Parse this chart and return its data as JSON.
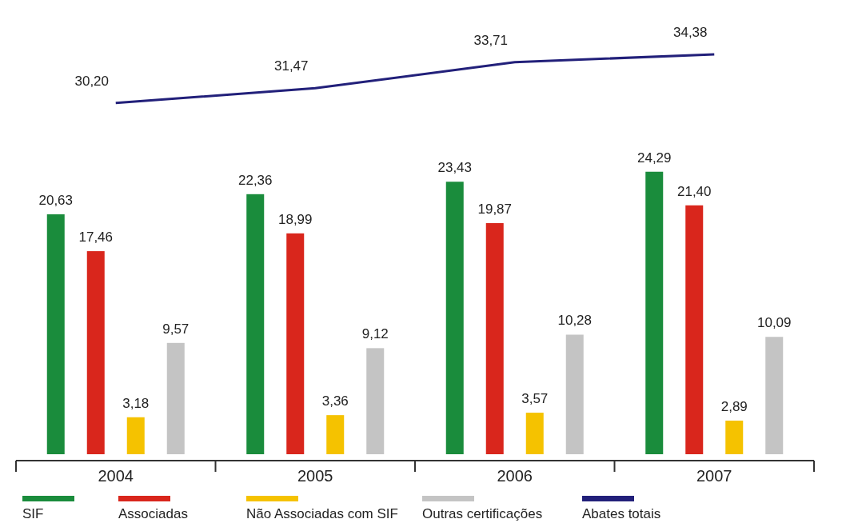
{
  "chart_data": {
    "type": "bar",
    "categories": [
      "2004",
      "2005",
      "2006",
      "2007"
    ],
    "series": [
      {
        "name": "SIF",
        "color": "#1a8c3c",
        "values": [
          20.63,
          22.36,
          23.43,
          24.29
        ],
        "value_labels": [
          "20,63",
          "22,36",
          "23,43",
          "24,29"
        ]
      },
      {
        "name": "Associadas",
        "color": "#d9261c",
        "values": [
          17.46,
          18.99,
          19.87,
          21.4
        ],
        "value_labels": [
          "17,46",
          "18,99",
          "19,87",
          "21,40"
        ]
      },
      {
        "name": "Não Associadas com SIF",
        "color": "#f5c200",
        "values": [
          3.18,
          3.36,
          3.57,
          2.89
        ],
        "value_labels": [
          "3,18",
          "3,36",
          "3,57",
          "2,89"
        ]
      },
      {
        "name": "Outras certificações",
        "color": "#c4c4c4",
        "values": [
          9.57,
          9.12,
          10.28,
          10.09
        ],
        "value_labels": [
          "9,57",
          "9,12",
          "10,28",
          "10,09"
        ]
      },
      {
        "name": "Abates totais",
        "type": "line",
        "color": "#22207a",
        "values": [
          30.2,
          31.47,
          33.71,
          34.38
        ],
        "value_labels": [
          "30,20",
          "31,47",
          "33,71",
          "34,38"
        ]
      }
    ],
    "tick_labels": "x",
    "legend": "bottom",
    "marker": "none",
    "line_style": "solid"
  }
}
